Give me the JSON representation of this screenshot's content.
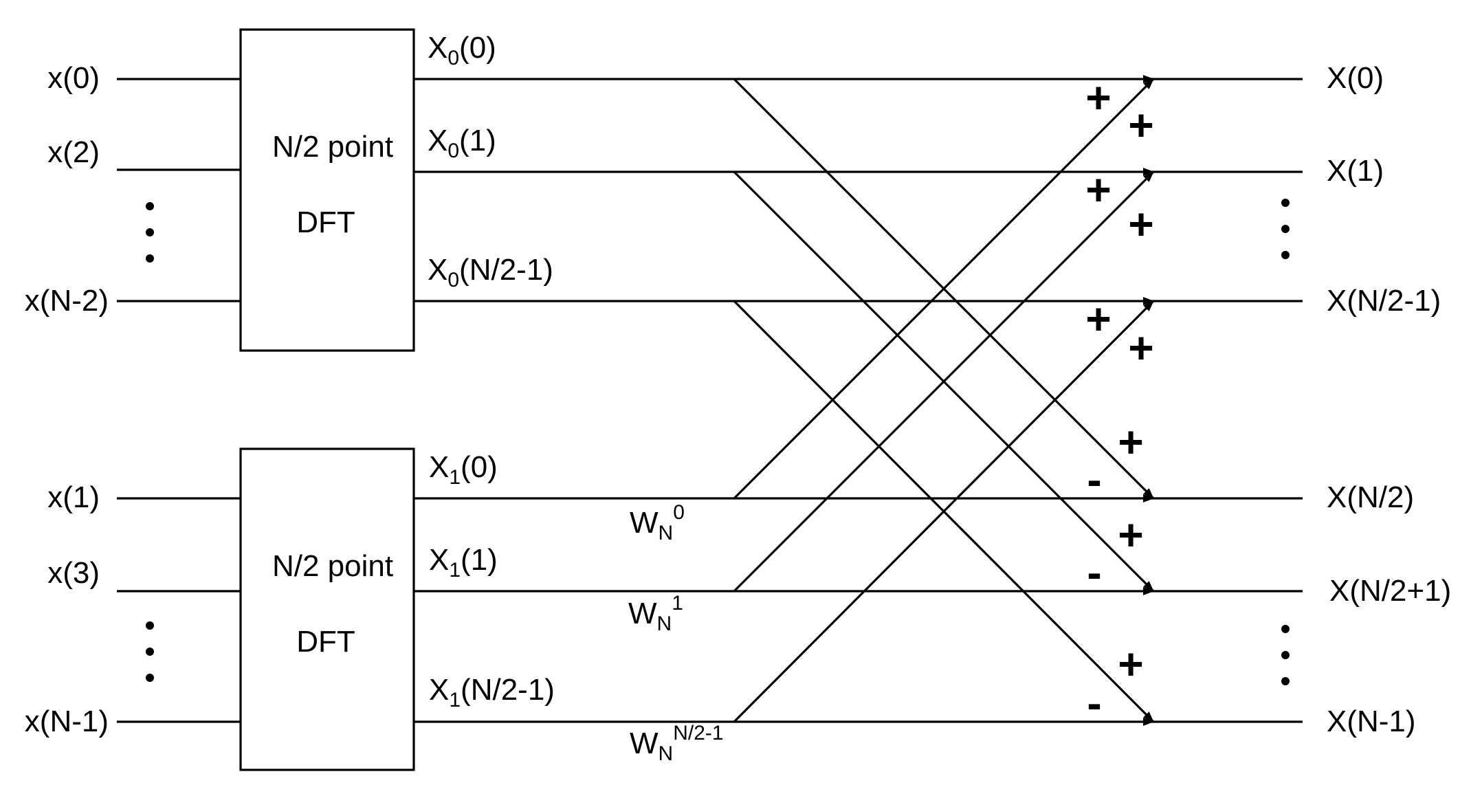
{
  "inputs": {
    "even": [
      "x(0)",
      "x(2)",
      "x(N-2)"
    ],
    "odd": [
      "x(1)",
      "x(3)",
      "x(N-1)"
    ]
  },
  "blocks": [
    {
      "line1": "N/2 point",
      "line2": "DFT"
    },
    {
      "line1": "N/2 point",
      "line2": "DFT"
    }
  ],
  "mid_outputs": {
    "top": [
      {
        "base": "X",
        "sub": "0",
        "arg": "(0)"
      },
      {
        "base": "X",
        "sub": "0",
        "arg": "(1)"
      },
      {
        "base": "X",
        "sub": "0",
        "arg": "(N/2-1)"
      }
    ],
    "bottom": [
      {
        "base": "X",
        "sub": "1",
        "arg": "(0)"
      },
      {
        "base": "X",
        "sub": "1",
        "arg": "(1)"
      },
      {
        "base": "X",
        "sub": "1",
        "arg": "(N/2-1)"
      }
    ]
  },
  "twiddles": [
    {
      "base": "W",
      "sub": "N",
      "sup": "0"
    },
    {
      "base": "W",
      "sub": "N",
      "sup": "1"
    },
    {
      "base": "W",
      "sub": "N",
      "sup": "N/2-1"
    }
  ],
  "outputs": [
    "X(0)",
    "X(1)",
    "X(N/2-1)",
    "X(N/2)",
    "X(N/2+1)",
    "X(N-1)"
  ],
  "signs": {
    "top_straight": "+",
    "top_cross": "+",
    "bottom_cross": "+",
    "bottom_straight": "-"
  }
}
